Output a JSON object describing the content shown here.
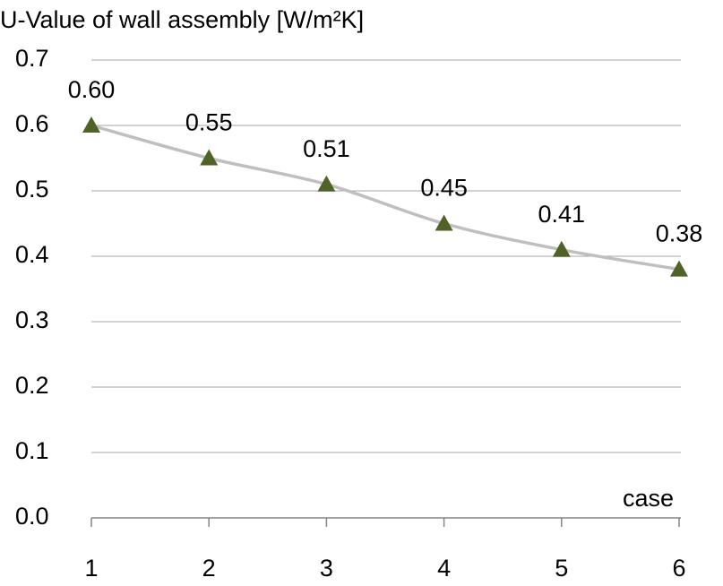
{
  "chart_data": {
    "type": "line",
    "title": "U-Value of wall assembly [W/m²K]",
    "x_label": "case",
    "categories": [
      "1",
      "2",
      "3",
      "4",
      "5",
      "6"
    ],
    "series": [
      {
        "name": "U-Value",
        "color": "#4f6228",
        "line_color": "#bfbfbf",
        "values": [
          0.6,
          0.55,
          0.51,
          0.45,
          0.41,
          0.38
        ],
        "value_labels": [
          "0.60",
          "0.55",
          "0.51",
          "0.45",
          "0.41",
          "0.38"
        ]
      }
    ],
    "ylim": [
      0,
      0.7
    ],
    "yticks": [
      {
        "value": 0,
        "label": "0.0"
      },
      0.1,
      0.2,
      0.3,
      0.4,
      0.5,
      0.6,
      0.7
    ],
    "grid": true
  }
}
